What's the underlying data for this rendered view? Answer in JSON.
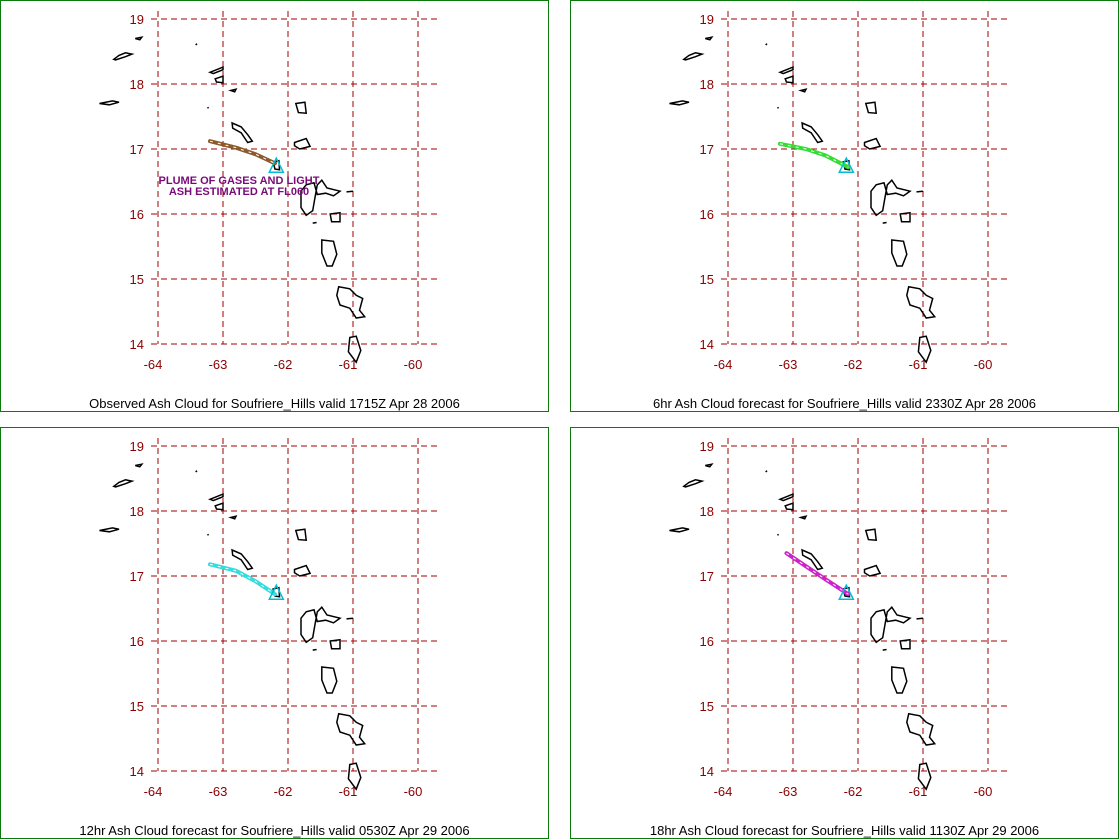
{
  "lat_ticks": [
    "19",
    "18",
    "17",
    "16",
    "15",
    "14"
  ],
  "lon_ticks": [
    "-64",
    "-63",
    "-62",
    "-61",
    "-60"
  ],
  "colors": {
    "grid": "#a00000",
    "tick_text": "#8b0000",
    "coast": "#000000",
    "volcano": "#00bcd4",
    "border": "#0a7a0a"
  },
  "panels": [
    {
      "caption": "Observed Ash Cloud for Soufriere_Hills valid 1715Z Apr 28 2006",
      "plume_color": "#8b5a2b",
      "note_lines": [
        "PLUME OF GASES AND LIGHT",
        "ASH ESTIMATED AT FL060"
      ]
    },
    {
      "caption": "6hr Ash Cloud forecast for Soufriere_Hills valid 2330Z Apr 28 2006",
      "plume_color": "#33dd33",
      "note_lines": []
    },
    {
      "caption": "12hr Ash Cloud forecast for Soufriere_Hills valid 0530Z Apr 29 2006",
      "plume_color": "#33dddd",
      "note_lines": []
    },
    {
      "caption": "18hr Ash Cloud forecast for Soufriere_Hills valid 1130Z Apr 29 2006",
      "plume_color": "#cc22cc",
      "note_lines": []
    }
  ]
}
